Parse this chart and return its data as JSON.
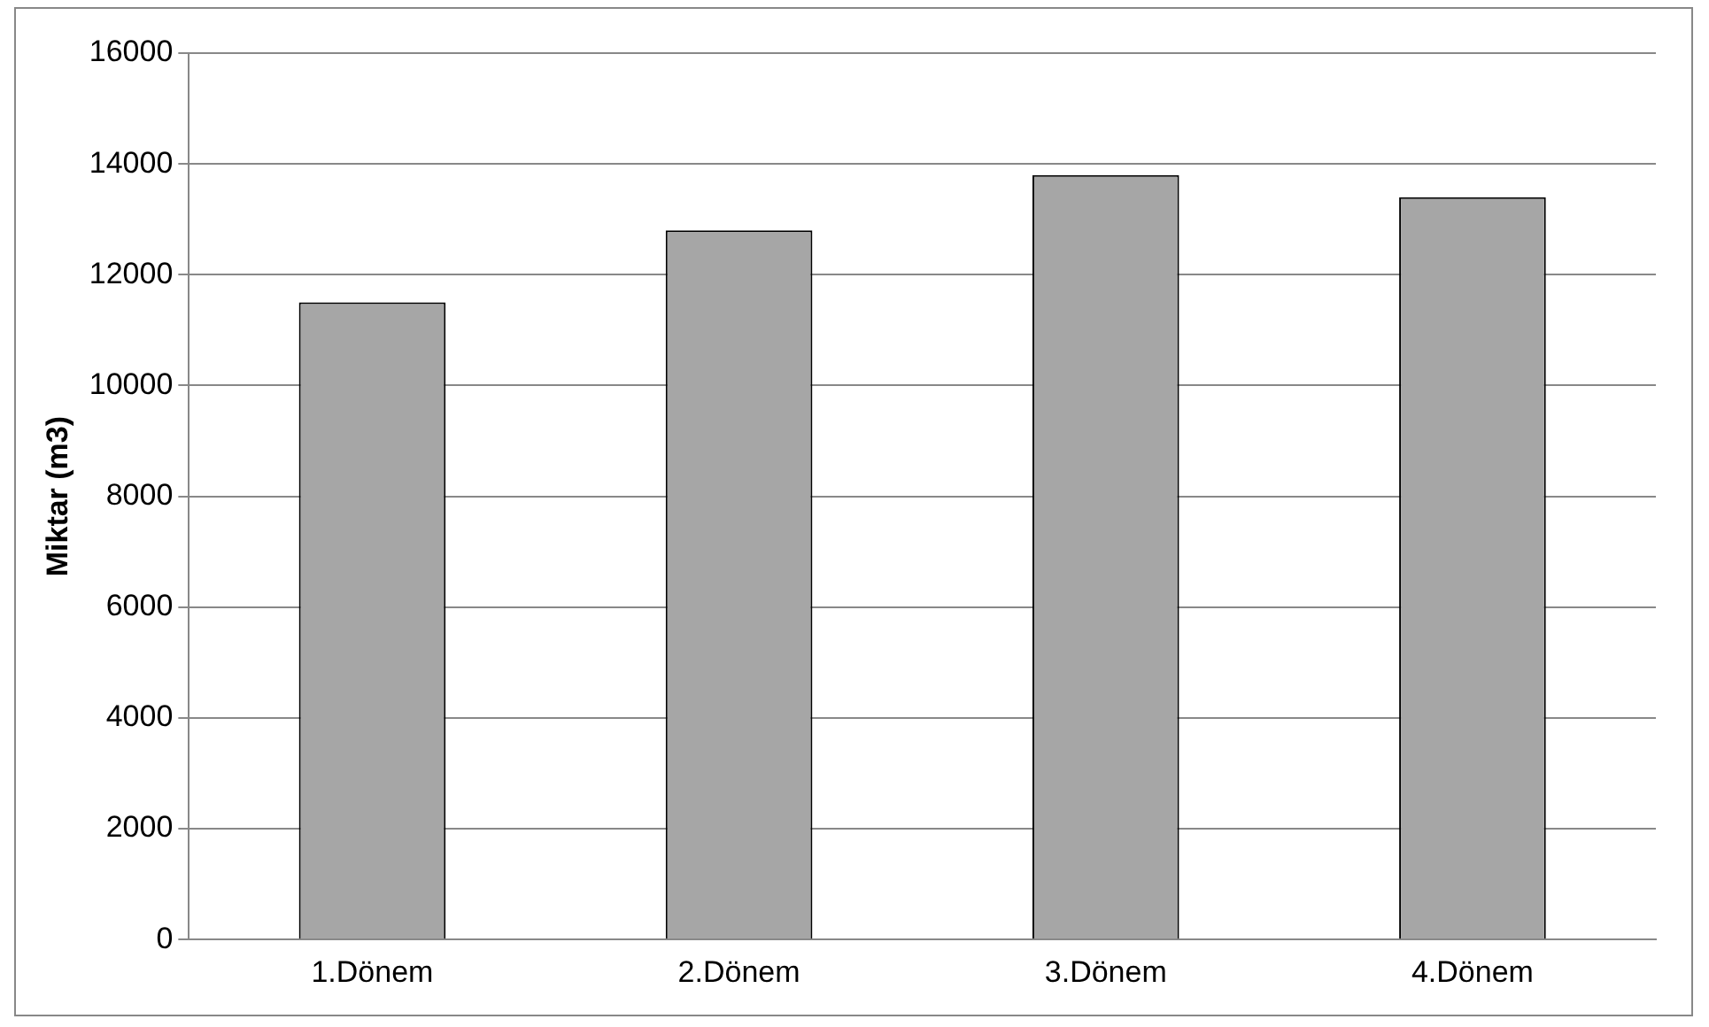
{
  "chart_data": {
    "type": "bar",
    "ylabel": "Miktar (m3)",
    "categories": [
      "1.Dönem",
      "2.Dönem",
      "3.Dönem",
      "4.Dönem"
    ],
    "values": [
      11500,
      12800,
      13800,
      13400
    ],
    "color": "#a6a6a6",
    "ylim": [
      0,
      16000
    ],
    "yticks": [
      0,
      2000,
      4000,
      6000,
      8000,
      10000,
      12000,
      14000,
      16000
    ],
    "grid": "y",
    "legend": false
  }
}
